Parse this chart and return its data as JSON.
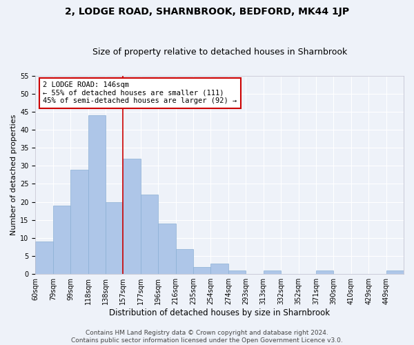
{
  "title": "2, LODGE ROAD, SHARNBROOK, BEDFORD, MK44 1JP",
  "subtitle": "Size of property relative to detached houses in Sharnbrook",
  "xlabel": "Distribution of detached houses by size in Sharnbrook",
  "ylabel": "Number of detached properties",
  "bar_values": [
    9,
    19,
    29,
    44,
    20,
    32,
    22,
    14,
    7,
    2,
    3,
    1,
    0,
    1,
    0,
    0,
    1,
    0,
    0,
    0,
    1
  ],
  "bar_labels": [
    "60sqm",
    "79sqm",
    "99sqm",
    "118sqm",
    "138sqm",
    "157sqm",
    "177sqm",
    "196sqm",
    "216sqm",
    "235sqm",
    "254sqm",
    "274sqm",
    "293sqm",
    "313sqm",
    "332sqm",
    "352sqm",
    "371sqm",
    "390sqm",
    "410sqm",
    "429sqm",
    "449sqm"
  ],
  "bar_color": "#aec6e8",
  "bar_edge_color": "#8aafd4",
  "vline_color": "#cc0000",
  "vline_x_index": 4.5,
  "annotation_text": "2 LODGE ROAD: 146sqm\n← 55% of detached houses are smaller (111)\n45% of semi-detached houses are larger (92) →",
  "annotation_box_color": "#cc0000",
  "ylim": [
    0,
    55
  ],
  "yticks": [
    0,
    5,
    10,
    15,
    20,
    25,
    30,
    35,
    40,
    45,
    50,
    55
  ],
  "footer_line1": "Contains HM Land Registry data © Crown copyright and database right 2024.",
  "footer_line2": "Contains public sector information licensed under the Open Government Licence v3.0.",
  "background_color": "#eef2f9",
  "grid_color": "#ffffff",
  "title_fontsize": 10,
  "subtitle_fontsize": 9,
  "xlabel_fontsize": 8.5,
  "ylabel_fontsize": 8,
  "tick_fontsize": 7,
  "annotation_fontsize": 7.5,
  "footer_fontsize": 6.5
}
